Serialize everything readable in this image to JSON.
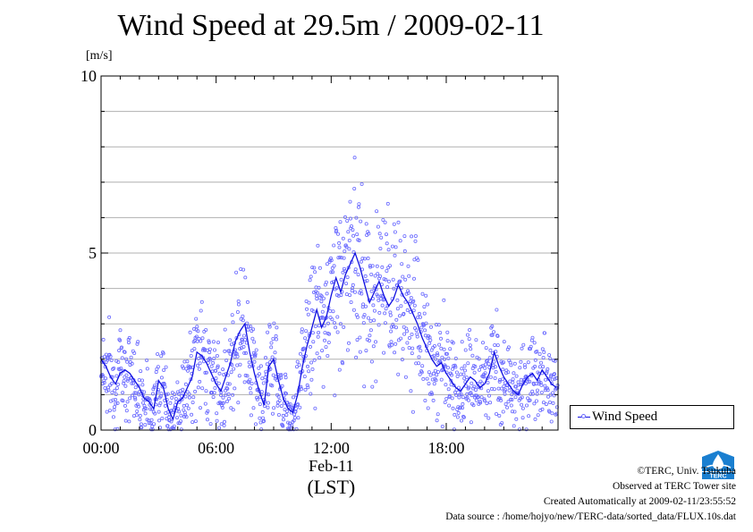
{
  "page": {
    "title": "Wind Speed at 29.5m / 2009-02-11",
    "unit": "[m/s]",
    "legend_label": "Wind Speed",
    "credits": [
      "©TERC, Univ. Tsukuba",
      "Observed at TERC Tower site",
      "Created Automatically at 2009-02-11/23:55:52",
      "Data source : /home/hojyo/new/TERC-data/sorted_data/FLUX.10s.dat"
    ],
    "logo_text": "TERC"
  },
  "colors": {
    "line": "#1010e0",
    "markers": "#6a6aff",
    "grid": "#b0b0b0"
  },
  "chart_data": {
    "type": "line",
    "title": "Wind Speed at 29.5m / 2009-02-11",
    "ylabel": "[m/s]",
    "xlabel": "(LST)",
    "date_label": "Feb-11",
    "xlim_hours": [
      0,
      23.83
    ],
    "ylim": [
      0,
      10
    ],
    "y_ticks": [
      0,
      5,
      10
    ],
    "y_minor_step": 1,
    "x_ticks": [
      {
        "hour": 0,
        "label": "00:00"
      },
      {
        "hour": 6,
        "label": "06:00"
      },
      {
        "hour": 12,
        "label": "12:00"
      },
      {
        "hour": 18,
        "label": "18:00"
      }
    ],
    "grid": true,
    "legend": "outside-right-bottom",
    "series": [
      {
        "name": "Wind Speed",
        "hour": [
          0,
          0.25,
          0.5,
          0.75,
          1,
          1.25,
          1.5,
          1.75,
          2,
          2.25,
          2.5,
          2.75,
          3,
          3.25,
          3.5,
          3.75,
          4,
          4.25,
          4.5,
          4.75,
          5,
          5.25,
          5.5,
          5.75,
          6,
          6.25,
          6.5,
          6.75,
          7,
          7.25,
          7.5,
          7.75,
          8,
          8.25,
          8.5,
          8.75,
          9,
          9.25,
          9.5,
          9.75,
          10,
          10.25,
          10.5,
          10.75,
          11,
          11.25,
          11.5,
          11.75,
          12,
          12.25,
          12.5,
          12.75,
          13,
          13.25,
          13.5,
          13.75,
          14,
          14.25,
          14.5,
          14.75,
          15,
          15.25,
          15.5,
          15.75,
          16,
          16.25,
          16.5,
          16.75,
          17,
          17.25,
          17.5,
          17.75,
          18,
          18.25,
          18.5,
          18.75,
          19,
          19.25,
          19.5,
          19.75,
          20,
          20.25,
          20.5,
          20.75,
          21,
          21.25,
          21.5,
          21.75,
          22,
          22.25,
          22.5,
          22.75,
          23,
          23.25,
          23.5,
          23.75
        ],
        "values": [
          2.0,
          1.8,
          1.5,
          1.3,
          1.6,
          1.7,
          1.6,
          1.4,
          1.2,
          0.9,
          0.8,
          0.6,
          1.4,
          1.2,
          0.6,
          0.3,
          0.8,
          0.9,
          1.2,
          1.5,
          2.2,
          2.1,
          1.9,
          1.6,
          1.3,
          1.1,
          1.5,
          1.9,
          2.5,
          2.8,
          3.0,
          2.2,
          1.6,
          1.1,
          0.7,
          1.8,
          2.0,
          1.4,
          0.9,
          0.6,
          0.5,
          1.0,
          1.8,
          2.4,
          2.9,
          3.4,
          2.9,
          3.2,
          3.8,
          4.3,
          3.9,
          4.4,
          4.7,
          5.0,
          4.6,
          4.1,
          3.6,
          3.9,
          4.2,
          3.8,
          3.5,
          3.7,
          4.1,
          3.8,
          3.6,
          3.3,
          3.0,
          2.6,
          2.3,
          2.0,
          1.8,
          1.9,
          1.6,
          1.4,
          1.2,
          1.1,
          1.3,
          1.5,
          1.4,
          1.2,
          1.3,
          1.6,
          2.2,
          1.8,
          1.5,
          1.3,
          1.1,
          1.0,
          1.3,
          1.5,
          1.6,
          1.4,
          1.7,
          1.5,
          1.3,
          1.2
        ]
      }
    ]
  }
}
